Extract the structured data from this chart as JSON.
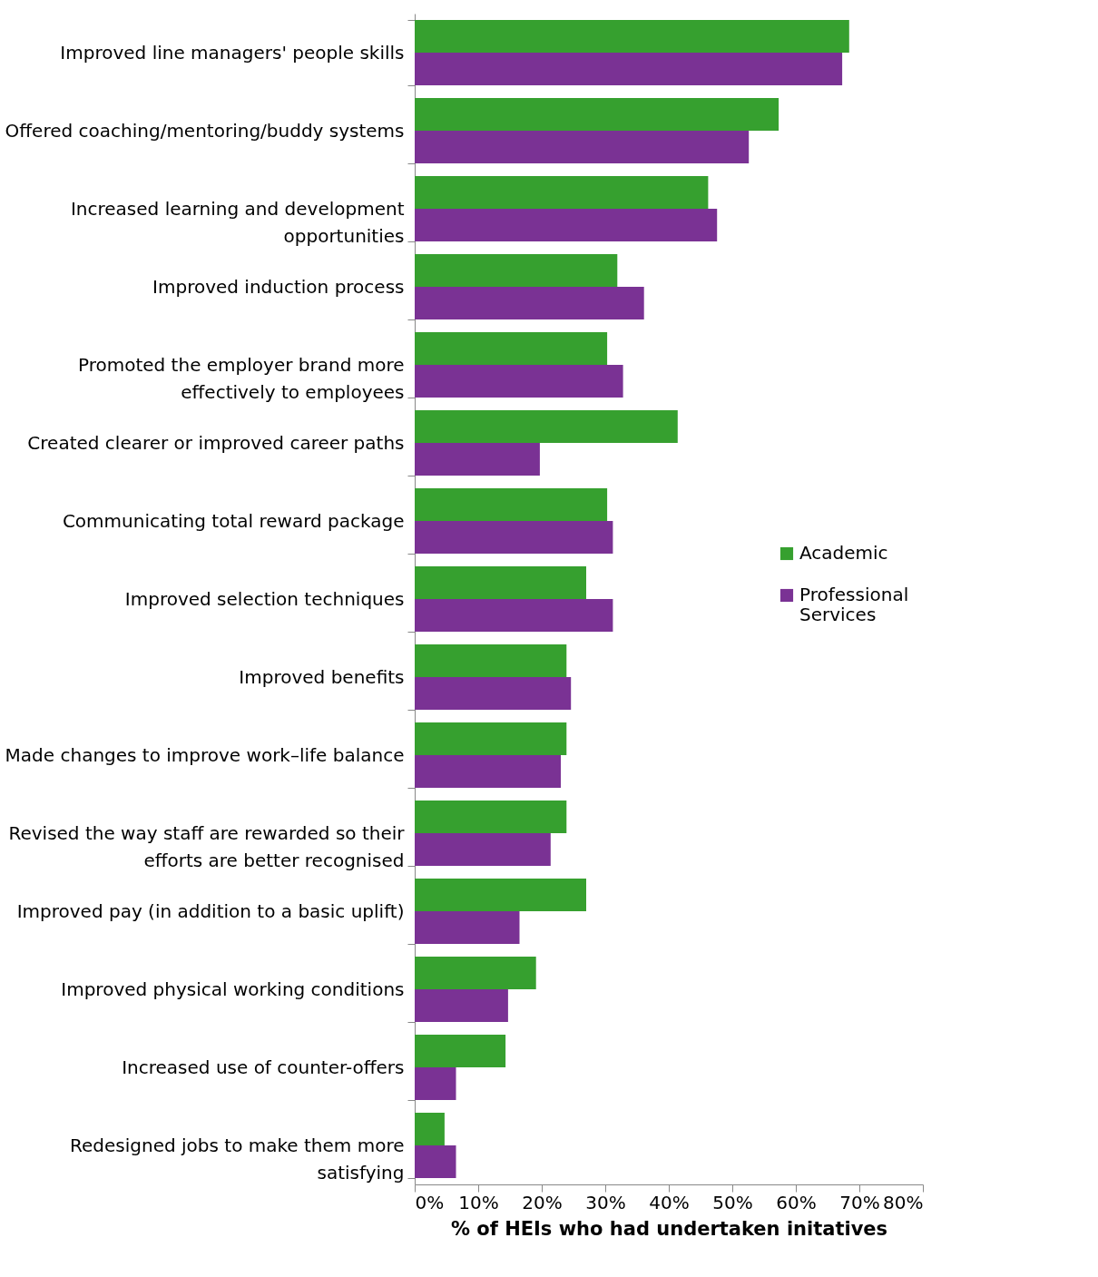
{
  "chart_data": {
    "type": "bar",
    "orientation": "horizontal",
    "xlabel": "% of HEIs who had undertaken initatives",
    "categories": [
      "Improved line managers' people skills",
      "Offered coaching/mentoring/buddy systems",
      "Increased learning and development\nopportunities",
      "Improved induction process",
      "Promoted the employer brand more\neffectively to employees",
      "Created clearer or improved career paths",
      "Communicating total reward package",
      "Improved selection techniques",
      "Improved benefits",
      "Made changes to improve work–life balance",
      "Revised the way staff are rewarded so their\nefforts are better recognised",
      "Improved pay (in addition to a basic uplift)",
      "Improved physical working conditions",
      "Increased use of counter-offers",
      "Redesigned jobs to make them more\nsatisfying"
    ],
    "series": [
      {
        "name": "Academic",
        "color": "#36a02f",
        "values": [
          68.4,
          57.3,
          46.2,
          31.9,
          30.3,
          41.4,
          30.3,
          27.0,
          23.9,
          23.9,
          23.9,
          27.0,
          19.1,
          14.3,
          4.7
        ]
      },
      {
        "name": "Professional\nServices",
        "color": "#7a3294",
        "values": [
          67.3,
          52.6,
          47.6,
          36.1,
          32.8,
          19.7,
          31.2,
          31.2,
          24.6,
          23.0,
          21.4,
          16.5,
          14.7,
          6.5,
          6.5
        ]
      }
    ],
    "xlim": [
      0,
      80
    ],
    "xticks": [
      {
        "value": 0,
        "label": "0%"
      },
      {
        "value": 10,
        "label": "10%"
      },
      {
        "value": 20,
        "label": "20%"
      },
      {
        "value": 30,
        "label": "30%"
      },
      {
        "value": 40,
        "label": "40%"
      },
      {
        "value": 50,
        "label": "50%"
      },
      {
        "value": 60,
        "label": "60%"
      },
      {
        "value": 70,
        "label": "70%"
      },
      {
        "value": 80,
        "label": "80%"
      }
    ],
    "grid": false,
    "legend": "right"
  }
}
